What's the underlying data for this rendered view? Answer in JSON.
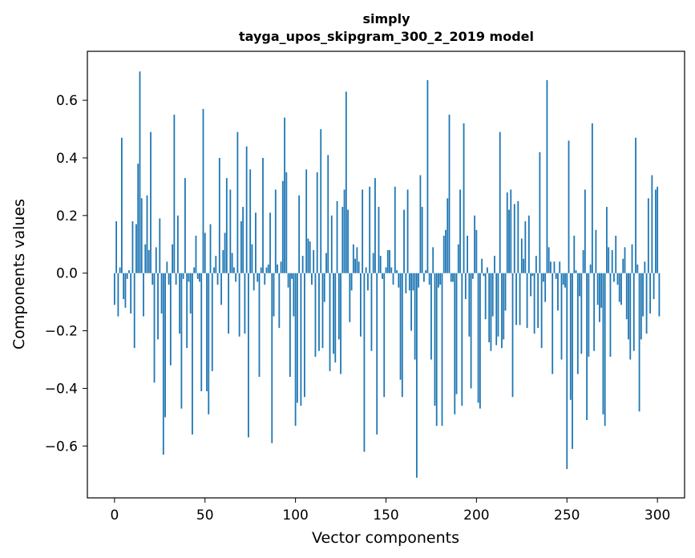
{
  "chart_data": {
    "type": "bar",
    "title": "simply",
    "subtitle": "tayga_upos_skipgram_300_2_2019 model",
    "xlabel": "Vector components",
    "ylabel": "Components values",
    "xlim": [
      -15,
      315
    ],
    "ylim": [
      -0.78,
      0.77
    ],
    "xticks": [
      0,
      50,
      100,
      150,
      200,
      250,
      300
    ],
    "yticks": [
      0.6,
      0.4,
      0.2,
      0.0,
      -0.2,
      -0.4,
      -0.6
    ],
    "ytick_labels": [
      "0.6",
      "0.4",
      "0.2",
      "0.0",
      "−0.2",
      "−0.4",
      "−0.6"
    ],
    "grid": false,
    "bar_color": "#1f77b4",
    "values": [
      -0.11,
      0.18,
      -0.15,
      0.02,
      0.47,
      -0.09,
      -0.12,
      -0.02,
      0.01,
      -0.14,
      0.18,
      -0.26,
      0.17,
      0.38,
      0.7,
      0.26,
      -0.15,
      0.1,
      0.27,
      0.08,
      0.49,
      -0.04,
      -0.38,
      0.09,
      -0.23,
      0.19,
      -0.14,
      -0.63,
      -0.5,
      0.04,
      -0.04,
      -0.32,
      0.1,
      0.55,
      -0.04,
      0.2,
      -0.21,
      -0.47,
      -0.02,
      0.33,
      -0.26,
      -0.03,
      -0.14,
      -0.56,
      0.02,
      0.13,
      -0.02,
      -0.03,
      -0.41,
      0.57,
      0.14,
      -0.41,
      -0.49,
      0.17,
      -0.34,
      0.02,
      0.06,
      -0.04,
      0.4,
      -0.11,
      0.08,
      0.14,
      0.33,
      -0.21,
      0.29,
      0.07,
      0.02,
      -0.03,
      0.49,
      -0.22,
      0.18,
      0.23,
      -0.21,
      0.44,
      -0.57,
      0.36,
      0.1,
      -0.06,
      0.21,
      -0.03,
      -0.36,
      0.02,
      0.4,
      -0.04,
      0.02,
      0.03,
      0.21,
      -0.59,
      -0.15,
      0.29,
      0.03,
      -0.19,
      0.04,
      0.32,
      0.54,
      0.35,
      -0.05,
      -0.36,
      -0.02,
      -0.15,
      -0.53,
      -0.45,
      0.27,
      -0.46,
      0.06,
      -0.43,
      0.36,
      0.12,
      0.11,
      -0.04,
      0.08,
      -0.29,
      0.35,
      -0.27,
      0.5,
      -0.26,
      -0.1,
      0.07,
      0.41,
      -0.34,
      0.2,
      -0.28,
      -0.31,
      0.25,
      -0.23,
      -0.35,
      0.23,
      0.29,
      0.63,
      0.22,
      -0.17,
      -0.06,
      0.1,
      0.05,
      0.09,
      0.04,
      -0.22,
      0.29,
      -0.62,
      0.02,
      -0.06,
      0.3,
      -0.27,
      0.07,
      0.33,
      -0.56,
      0.23,
      0.06,
      -0.02,
      -0.43,
      0.02,
      0.08,
      0.08,
      0.02,
      -0.04,
      0.3,
      0.01,
      -0.05,
      -0.37,
      -0.43,
      0.22,
      -0.07,
      0.29,
      -0.06,
      -0.2,
      -0.06,
      -0.3,
      -0.71,
      -0.05,
      0.34,
      0.23,
      -0.03,
      0.01,
      0.67,
      -0.04,
      -0.3,
      0.09,
      -0.46,
      -0.53,
      -0.05,
      -0.04,
      -0.53,
      0.13,
      0.15,
      0.26,
      0.55,
      -0.03,
      -0.03,
      -0.49,
      -0.42,
      0.1,
      0.29,
      -0.46,
      0.52,
      -0.09,
      0.13,
      -0.22,
      -0.4,
      -0.02,
      0.2,
      0.15,
      -0.45,
      -0.47,
      0.05,
      -0.01,
      -0.16,
      0.02,
      -0.24,
      -0.27,
      -0.15,
      0.06,
      -0.25,
      -0.22,
      0.49,
      -0.26,
      -0.23,
      -0.13,
      0.28,
      0.22,
      0.29,
      -0.43,
      0.24,
      -0.18,
      0.25,
      -0.18,
      0.12,
      0.05,
      0.18,
      -0.19,
      0.2,
      -0.08,
      -0.01,
      -0.21,
      0.06,
      -0.19,
      0.42,
      -0.26,
      -0.03,
      -0.1,
      0.67,
      0.09,
      0.04,
      -0.35,
      0.04,
      -0.02,
      -0.13,
      0.04,
      -0.3,
      -0.04,
      -0.05,
      -0.68,
      0.46,
      -0.44,
      -0.61,
      0.13,
      0.01,
      -0.35,
      -0.08,
      -0.28,
      0.08,
      0.29,
      -0.51,
      -0.29,
      0.03,
      0.52,
      -0.27,
      0.15,
      -0.11,
      -0.17,
      -0.12,
      -0.49,
      -0.53,
      0.23,
      0.09,
      -0.29,
      0.08,
      -0.03,
      0.13,
      -0.04,
      -0.1,
      -0.11,
      0.05,
      0.09,
      -0.16,
      -0.23,
      -0.3,
      0.1,
      -0.27,
      0.47,
      0.03,
      -0.48,
      -0.23,
      -0.15,
      0.04,
      -0.21,
      0.26,
      -0.14,
      0.34,
      -0.09,
      0.29,
      0.3,
      -0.15
    ]
  }
}
